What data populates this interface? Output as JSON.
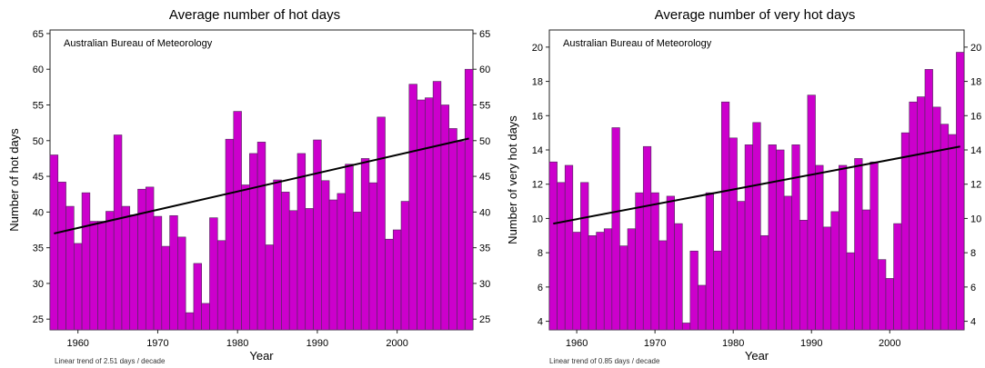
{
  "chart_data": [
    {
      "type": "bar",
      "title": "Average number of hot days",
      "source": "Australian Bureau of Meteorology",
      "xlabel": "Year",
      "ylabel": "Number of hot days",
      "trend_note": "Linear  trend of 2.51 days / decade",
      "x_start": 1957,
      "x_ticks": [
        1960,
        1970,
        1980,
        1990,
        2000
      ],
      "ylim": [
        23.5,
        65.5
      ],
      "y_ticks": [
        25,
        30,
        35,
        40,
        45,
        50,
        55,
        60,
        65
      ],
      "bar_color": "#cc00cc",
      "trend_color": "#000000",
      "trend": {
        "start": 37.0,
        "end": 50.3
      },
      "values": [
        48,
        44.2,
        40.8,
        35.6,
        42.7,
        38.7,
        38.7,
        40.1,
        50.8,
        40.8,
        39.6,
        43.2,
        43.5,
        39.4,
        35.2,
        39.5,
        36.5,
        25.9,
        32.8,
        27.2,
        39.2,
        36,
        50.2,
        54.1,
        43.8,
        48.2,
        49.8,
        35.4,
        44.5,
        42.8,
        40.2,
        48.2,
        40.5,
        50.1,
        44.4,
        41.7,
        42.6,
        46.7,
        40,
        47.5,
        44.1,
        53.3,
        36.2,
        37.5,
        41.5,
        57.9,
        55.7,
        56,
        58.3,
        55,
        51.7,
        49.9,
        60
      ]
    },
    {
      "type": "bar",
      "title": "Average number of very hot days",
      "source": "Australian Bureau of Meteorology",
      "xlabel": "Year",
      "ylabel": "Number of very hot days",
      "trend_note": "Linear  trend of 0.85 days / decade",
      "x_start": 1957,
      "x_ticks": [
        1960,
        1970,
        1980,
        1990,
        2000
      ],
      "ylim": [
        3.5,
        21
      ],
      "y_ticks": [
        4,
        6,
        8,
        10,
        12,
        14,
        16,
        18,
        20
      ],
      "bar_color": "#cc00cc",
      "trend_color": "#000000",
      "trend": {
        "start": 9.7,
        "end": 14.2
      },
      "values": [
        13.3,
        12.1,
        13.1,
        9.2,
        12.1,
        9.0,
        9.2,
        9.4,
        15.3,
        8.4,
        9.4,
        11.5,
        14.2,
        11.5,
        8.7,
        11.3,
        9.7,
        3.9,
        8.1,
        6.1,
        11.5,
        8.1,
        16.8,
        14.7,
        11.0,
        14.3,
        15.6,
        9.0,
        14.3,
        14.0,
        11.3,
        14.3,
        9.9,
        17.2,
        13.1,
        9.5,
        10.4,
        13.1,
        8.0,
        13.5,
        10.5,
        13.3,
        7.6,
        6.5,
        9.7,
        15.0,
        16.8,
        17.1,
        18.7,
        16.5,
        15.5,
        14.9,
        19.7
      ]
    }
  ]
}
